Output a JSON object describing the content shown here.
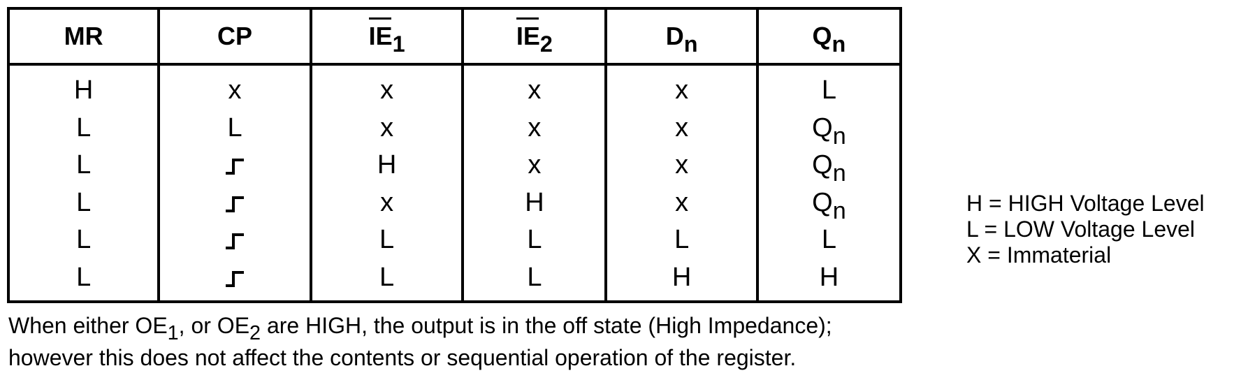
{
  "table": {
    "headers": {
      "mr": "MR",
      "cp": "CP",
      "ie1": {
        "base": "IE",
        "sub": "1"
      },
      "ie2": {
        "base": "IE",
        "sub": "2"
      },
      "dn": {
        "base": "D",
        "sub": "n"
      },
      "qn": {
        "base": "Q",
        "sub": "n"
      }
    },
    "rows": [
      {
        "mr": "H",
        "cp": "x",
        "ie1": "x",
        "ie2": "x",
        "dn": "x",
        "qn": "L"
      },
      {
        "mr": "L",
        "cp": "L",
        "ie1": "x",
        "ie2": "x",
        "dn": "x",
        "qn": {
          "base": "Q",
          "sub": "n"
        }
      },
      {
        "mr": "L",
        "cp": "rising-edge-icon",
        "ie1": "H",
        "ie2": "x",
        "dn": "x",
        "qn": {
          "base": "Q",
          "sub": "n"
        }
      },
      {
        "mr": "L",
        "cp": "rising-edge-icon",
        "ie1": "x",
        "ie2": "H",
        "dn": "x",
        "qn": {
          "base": "Q",
          "sub": "n"
        }
      },
      {
        "mr": "L",
        "cp": "rising-edge-icon",
        "ie1": "L",
        "ie2": "L",
        "dn": "L",
        "qn": "L"
      },
      {
        "mr": "L",
        "cp": "rising-edge-icon",
        "ie1": "L",
        "ie2": "L",
        "dn": "H",
        "qn": "H"
      }
    ]
  },
  "legend": {
    "h": "H = HIGH Voltage Level",
    "l": "L = LOW Voltage Level",
    "x": "X = Immaterial"
  },
  "note": {
    "line1_a": "When either OE",
    "line1_sub1": "1",
    "line1_b": ", or OE",
    "line1_sub2": "2",
    "line1_c": " are HIGH, the output is in the off state (High Impedance);",
    "line2": "however this does not affect the contents or sequential operation of the register."
  }
}
